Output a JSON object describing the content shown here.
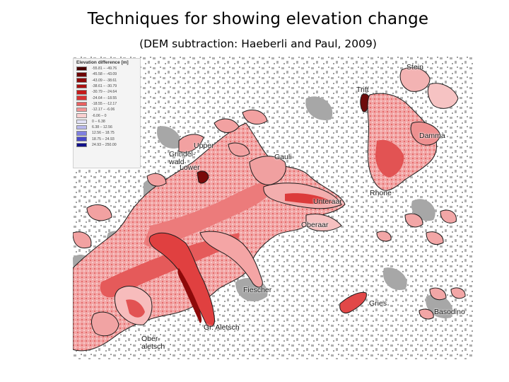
{
  "slide": {
    "title": "Techniques for showing elevation change",
    "subtitle": "(DEM subtraction: Haeberli and Paul, 2009)"
  },
  "legend": {
    "title": "Elevation difference [m]",
    "entries": [
      {
        "range": "-55.81 – -49.76",
        "color": "#4a0000"
      },
      {
        "range": "-45.58 – -43.09",
        "color": "#6e0505"
      },
      {
        "range": "-43.09 – -38.61",
        "color": "#8f0a0a"
      },
      {
        "range": "-38.61 – -30.79",
        "color": "#ad1010"
      },
      {
        "range": "-30.79 – -24.64",
        "color": "#c41a1a"
      },
      {
        "range": "-24.64 – -18.55",
        "color": "#d83333"
      },
      {
        "range": "-18.55 – -12.17",
        "color": "#e86060"
      },
      {
        "range": "-12.17 – -6.06",
        "color": "#f29595"
      },
      {
        "range": "-6.06 – 0",
        "color": "#fad0d0"
      },
      {
        "range": "0 – 6.38",
        "color": "#e2e2f7"
      },
      {
        "range": "6.38 – 12.56",
        "color": "#b8b8ee"
      },
      {
        "range": "12.56 – 18.75",
        "color": "#8080e0"
      },
      {
        "range": "18.75 – 24.93",
        "color": "#4848c8"
      },
      {
        "range": "24.93 – 250.00",
        "color": "#10108a"
      }
    ]
  },
  "map": {
    "colors": {
      "terrain_gray": "#a9a9a9",
      "ice_light": "#f4b6b6",
      "ice_mid": "#e86a6a",
      "ice_dark": "#c81e1e",
      "tongue": "#7a0a0a",
      "outline": "#1c1c1c"
    },
    "labels": [
      {
        "id": "stein",
        "text": "Stein"
      },
      {
        "id": "trift",
        "text": "Trift"
      },
      {
        "id": "damma",
        "text": "Damma"
      },
      {
        "id": "upper-grindelwald",
        "text": "Upper"
      },
      {
        "id": "grindelwald",
        "text": "Grindel-\nwald"
      },
      {
        "id": "lower-grindelwald",
        "text": "Lower"
      },
      {
        "id": "gauli",
        "text": "Gauli"
      },
      {
        "id": "rhone",
        "text": "Rhone"
      },
      {
        "id": "unteraar",
        "text": "Unteraar"
      },
      {
        "id": "oberaar",
        "text": "Oberaar"
      },
      {
        "id": "fiescher",
        "text": "Fiescher"
      },
      {
        "id": "gries",
        "text": "Gries"
      },
      {
        "id": "basodino",
        "text": "Basodino"
      },
      {
        "id": "gr-aletsch",
        "text": "Gr. Aletsch"
      },
      {
        "id": "oberaletsch",
        "text": "Ober-\naletsch"
      }
    ]
  }
}
